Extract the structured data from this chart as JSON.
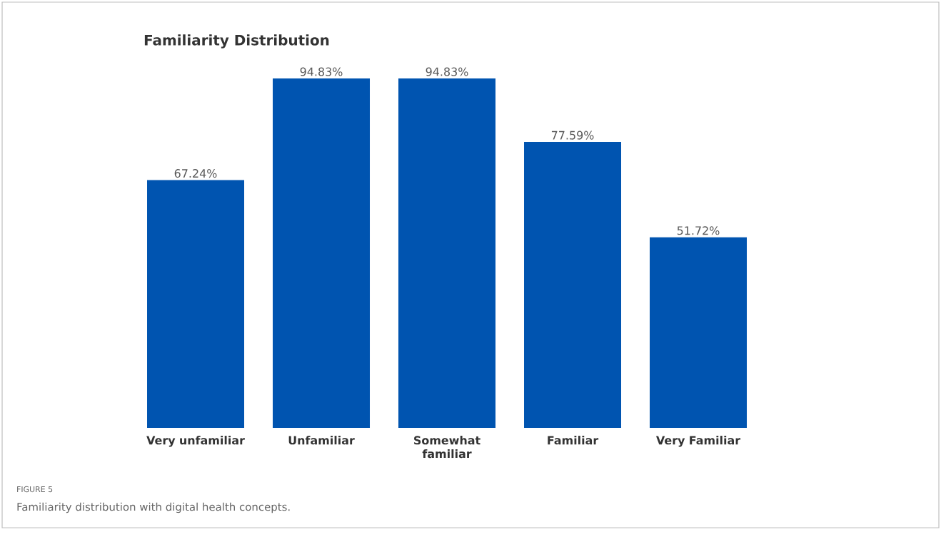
{
  "chart_data": {
    "type": "bar",
    "title": "Familiarity Distribution",
    "categories": [
      "Very unfamiliar",
      "Unfamiliar",
      "Somewhat familiar",
      "Familiar",
      "Very Familiar"
    ],
    "values": [
      67.24,
      94.83,
      94.83,
      77.59,
      51.72
    ],
    "value_labels": [
      "67.24%",
      "94.83%",
      "94.83%",
      "77.59%",
      "51.72%"
    ],
    "color": "#0054b0",
    "annotations": [
      "FIGURE 5",
      "Familiarity distribution with digital health concepts."
    ]
  }
}
